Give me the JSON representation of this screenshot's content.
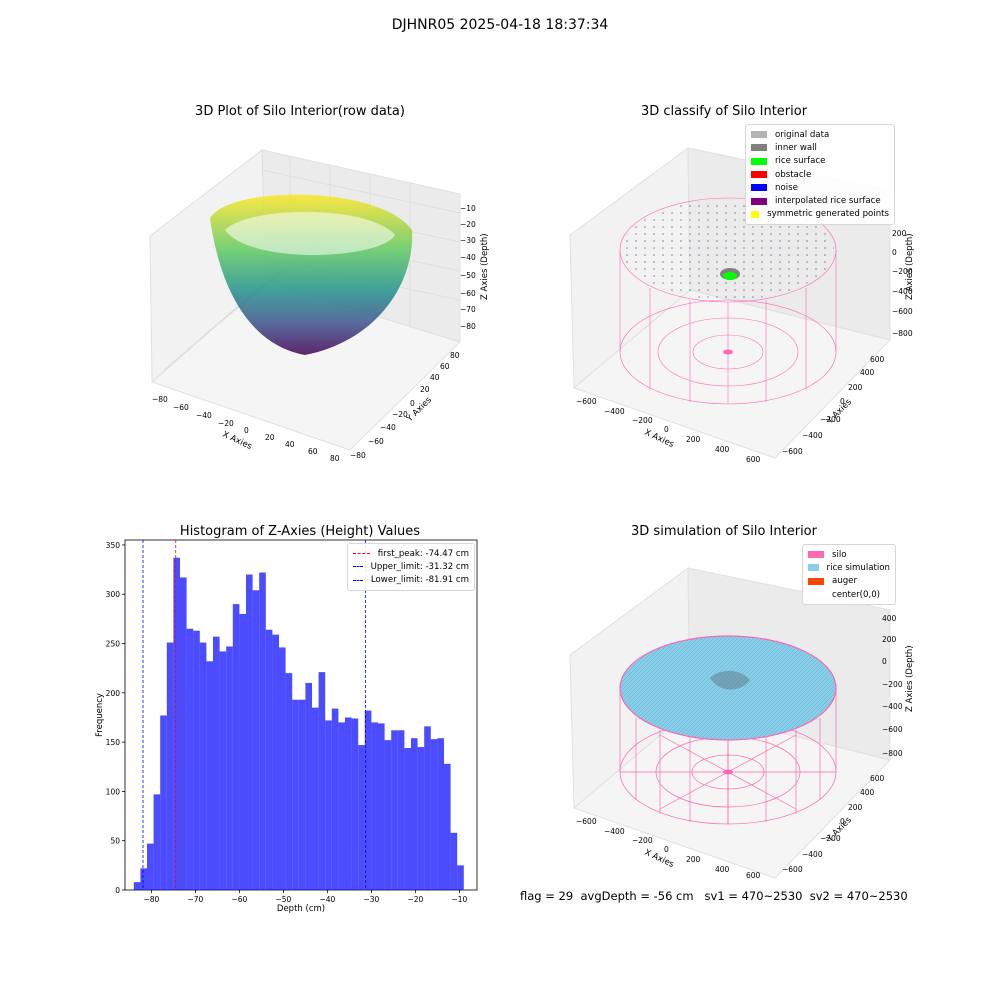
{
  "figure": {
    "suptitle": "DJHNR05 2025-04-18 18:37:34"
  },
  "colors": {
    "axis_pane": "#f2f2f2",
    "grid": "#d9d9d9",
    "pink": "#ff69b4",
    "rice": "#87ceeb",
    "hist": "#0000ff"
  },
  "chart_data": [
    {
      "type": "scatter",
      "title": "3D Plot of Silo Interior(row data)",
      "xlabel": "X Axies",
      "ylabel": "Y Axies",
      "zlabel": "Z Axies (Depth)",
      "x_ticks": [
        "−80",
        "−60",
        "−40",
        "−20",
        "0",
        "20",
        "40",
        "60",
        "80"
      ],
      "y_ticks": [
        "−80",
        "−60",
        "−40",
        "−20",
        "0",
        "20",
        "40",
        "60",
        "80"
      ],
      "z_ticks": [
        "−10",
        "−20",
        "−30",
        "−40",
        "−50",
        "−60",
        "−70",
        "−80"
      ],
      "colormap": "viridis"
    },
    {
      "type": "scatter",
      "title": "3D classify of Silo Interior",
      "xlabel": "X Axies",
      "ylabel": "Y Axies",
      "zlabel": "Z Axies (Depth)",
      "x_ticks": [
        "−600",
        "−400",
        "−200",
        "0",
        "200",
        "400",
        "600"
      ],
      "y_ticks": [
        "−600",
        "−400",
        "−200",
        "0",
        "200",
        "400",
        "600"
      ],
      "z_ticks": [
        "200",
        "0",
        "−200",
        "−400",
        "−600",
        "−800"
      ],
      "legend": [
        {
          "label": "original data",
          "color": "#b3b3b3"
        },
        {
          "label": "inner wall",
          "color": "#808080"
        },
        {
          "label": "rice surface",
          "color": "#00ff00"
        },
        {
          "label": "obstacle",
          "color": "#ff0000"
        },
        {
          "label": "noise",
          "color": "#0000ff"
        },
        {
          "label": "interpolated rice surface",
          "color": "#800080"
        },
        {
          "label": "symmetric generated points",
          "color": "#ffff00"
        }
      ]
    },
    {
      "type": "bar",
      "title": "Histogram of Z-Axies (Height) Values",
      "xlabel": "Depth (cm)",
      "ylabel": "Frequency",
      "xlim": [
        -86,
        -6
      ],
      "ylim": [
        0,
        355
      ],
      "x_ticks": [
        -80,
        -70,
        -60,
        -50,
        -40,
        -30,
        -20,
        -10
      ],
      "y_ticks": [
        0,
        50,
        100,
        150,
        200,
        250,
        300,
        350
      ],
      "bin_start": -84,
      "bin_width": 1.5,
      "values": [
        8,
        22,
        47,
        97,
        177,
        251,
        337,
        317,
        265,
        263,
        251,
        232,
        257,
        242,
        247,
        290,
        280,
        320,
        304,
        322,
        264,
        259,
        246,
        220,
        193,
        193,
        210,
        185,
        221,
        172,
        184,
        170,
        175,
        174,
        147,
        182,
        170,
        169,
        152,
        162,
        162,
        144,
        154,
        145,
        166,
        153,
        154,
        128,
        58,
        25
      ],
      "lines": [
        {
          "label": "first_peak: -74.47 cm",
          "x": -74.47,
          "color": "#ff0000"
        },
        {
          "label": "Upper_limit: -31.32 cm",
          "x": -31.32,
          "color": "#0000ff"
        },
        {
          "label": "Lower_limit: -81.91 cm",
          "x": -81.91,
          "color": "#0000ff"
        }
      ]
    },
    {
      "type": "scatter",
      "title": "3D simulation of Silo Interior",
      "xlabel": "X Axies",
      "ylabel": "Y Axies",
      "zlabel": "Z Axies (Depth)",
      "x_ticks": [
        "−600",
        "−400",
        "−200",
        "0",
        "200",
        "400",
        "600"
      ],
      "y_ticks": [
        "−600",
        "−400",
        "−200",
        "0",
        "200",
        "400",
        "600"
      ],
      "z_ticks": [
        "400",
        "200",
        "0",
        "−200",
        "−400",
        "−600",
        "−800"
      ],
      "legend": [
        {
          "label": "silo",
          "color": "#ff69b4"
        },
        {
          "label": "rice simulation",
          "color": "#87ceeb"
        },
        {
          "label": "auger",
          "color": "#ff4500"
        },
        {
          "label": "center(0,0)",
          "color": ""
        }
      ]
    }
  ],
  "status_line": "flag = 29  avgDepth = -56 cm   sv1 = 470~2530  sv2 = 470~2530"
}
